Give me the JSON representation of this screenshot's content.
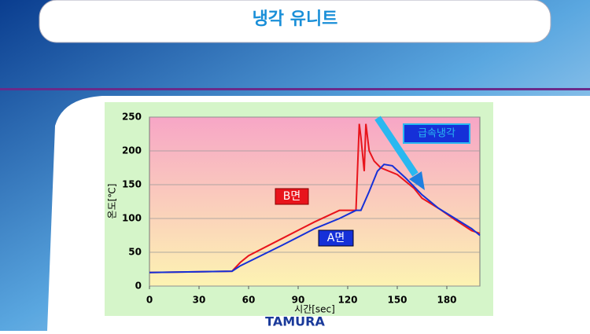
{
  "header": {
    "title": "냉각 유니트"
  },
  "footer": {
    "logo": "TAMURA"
  },
  "chart_data": {
    "type": "line",
    "xlabel": "시간[sec]",
    "ylabel": "온도[℃]",
    "xlim": [
      0,
      200
    ],
    "xticks": [
      0,
      30,
      60,
      90,
      120,
      150,
      180
    ],
    "ylim": [
      0,
      250
    ],
    "yticks": [
      0,
      50,
      100,
      150,
      200,
      250
    ],
    "grid": true,
    "annotations": [
      "B면",
      "A면",
      "급속냉각"
    ],
    "series": [
      {
        "name": "B면",
        "color": "#e8141c",
        "x": [
          0,
          50,
          55,
          60,
          80,
          100,
          115,
          125,
          127,
          128,
          130,
          131,
          133,
          136,
          140,
          150,
          160,
          165,
          175,
          185,
          195,
          200
        ],
        "values": [
          20,
          22,
          35,
          45,
          70,
          95,
          112,
          112,
          240,
          220,
          170,
          240,
          200,
          185,
          175,
          165,
          145,
          130,
          115,
          98,
          82,
          78
        ]
      },
      {
        "name": "A면",
        "color": "#1530d8",
        "x": [
          0,
          50,
          55,
          80,
          100,
          115,
          125,
          128,
          133,
          138,
          142,
          147,
          155,
          165,
          175,
          185,
          195,
          200
        ],
        "values": [
          20,
          22,
          30,
          60,
          85,
          100,
          112,
          112,
          140,
          170,
          180,
          178,
          160,
          135,
          115,
          100,
          85,
          75
        ]
      }
    ]
  }
}
